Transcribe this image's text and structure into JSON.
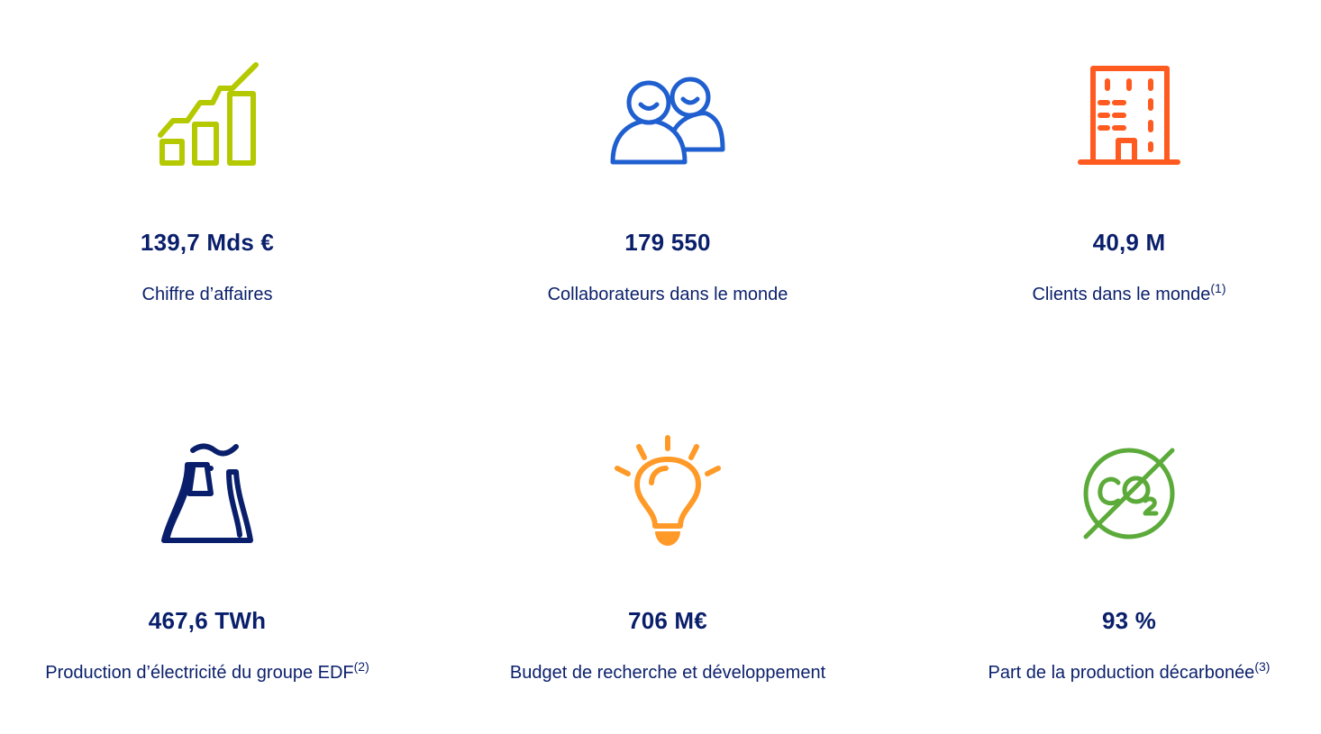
{
  "stats": [
    {
      "icon": "growth-chart-icon",
      "color": "#b5c900",
      "value": "139,7 Mds €",
      "label": "Chiffre d’affaires",
      "note": ""
    },
    {
      "icon": "people-icon",
      "color": "#1f5fcf",
      "value": "179 550",
      "label": "Collaborateurs dans le monde",
      "note": ""
    },
    {
      "icon": "building-icon",
      "color": "#ff5a1f",
      "value": "40,9 M",
      "label": "Clients dans le monde",
      "note": "(1)"
    },
    {
      "icon": "power-plant-icon",
      "color": "#0a1f6b",
      "value": "467,6 TWh",
      "label": "Production d’électricité du groupe EDF",
      "note": "(2)"
    },
    {
      "icon": "lightbulb-icon",
      "color": "#ff9a28",
      "value": "706 M€",
      "label": "Budget de recherche et développement",
      "note": ""
    },
    {
      "icon": "no-co2-icon",
      "color": "#5cab3a",
      "value": "93 %",
      "label": "Part de la production décarbonée",
      "note": "(3)"
    }
  ]
}
